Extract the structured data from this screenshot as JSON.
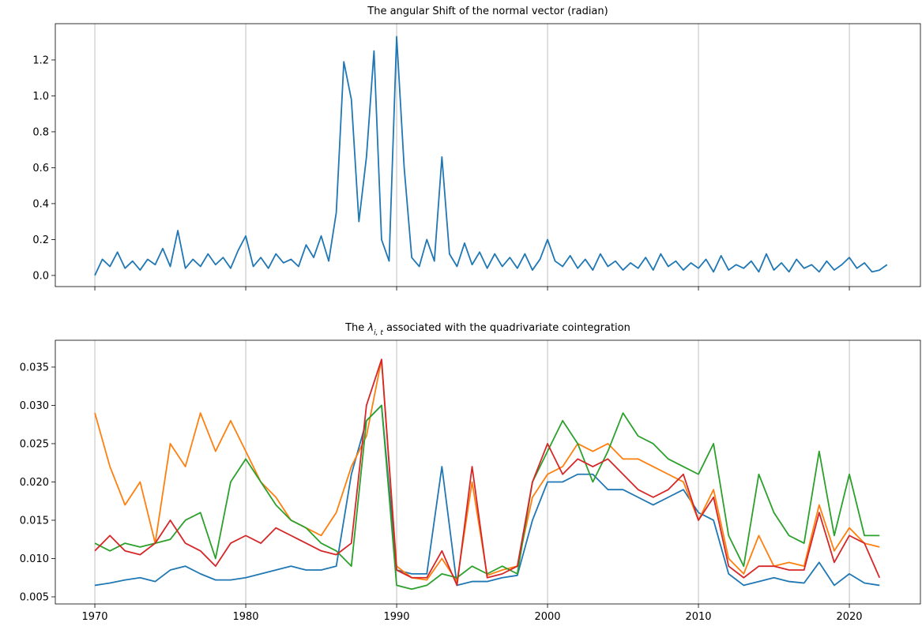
{
  "chart_data": [
    {
      "type": "line",
      "title": "The angular Shift of the normal vector (radian)",
      "grid": "x",
      "show_xtick_labels": false,
      "xlim": [
        1967.38,
        2024.71
      ],
      "xticks": [
        1970,
        1980,
        1990,
        2000,
        2010,
        2020
      ],
      "ylim": [
        -0.062,
        1.402
      ],
      "yticks": [
        {
          "value": 0,
          "label": "0.0"
        },
        0.2,
        0.4,
        0.6,
        0.8,
        {
          "value": 1,
          "label": "1.0"
        },
        1.2
      ],
      "x": [
        1970,
        1970.5,
        1971,
        1971.5,
        1972,
        1972.5,
        1973,
        1973.5,
        1974,
        1974.5,
        1975,
        1975.5,
        1976,
        1976.5,
        1977,
        1977.5,
        1978,
        1978.5,
        1979,
        1979.5,
        1980,
        1980.5,
        1981,
        1981.5,
        1982,
        1982.5,
        1983,
        1983.5,
        1984,
        1984.5,
        1985,
        1985.5,
        1986,
        1986.5,
        1987,
        1987.5,
        1988,
        1988.5,
        1989,
        1989.5,
        1990,
        1990.5,
        1991,
        1991.5,
        1992,
        1992.5,
        1993,
        1993.5,
        1994,
        1994.5,
        1995,
        1995.5,
        1996,
        1996.5,
        1997,
        1997.5,
        1998,
        1998.5,
        1999,
        1999.5,
        2000,
        2000.5,
        2001,
        2001.5,
        2002,
        2002.5,
        2003,
        2003.5,
        2004,
        2004.5,
        2005,
        2005.5,
        2006,
        2006.5,
        2007,
        2007.5,
        2008,
        2008.5,
        2009,
        2009.5,
        2010,
        2010.5,
        2011,
        2011.5,
        2012,
        2012.5,
        2013,
        2013.5,
        2014,
        2014.5,
        2015,
        2015.5,
        2016,
        2016.5,
        2017,
        2017.5,
        2018,
        2018.5,
        2019,
        2019.5,
        2020,
        2020.5,
        2021,
        2021.5,
        2022,
        2022.5
      ],
      "series": [
        {
          "color": "#1f77b4",
          "values": [
            0.0,
            0.09,
            0.05,
            0.13,
            0.04,
            0.08,
            0.03,
            0.09,
            0.06,
            0.15,
            0.05,
            0.25,
            0.04,
            0.09,
            0.05,
            0.12,
            0.06,
            0.1,
            0.04,
            0.14,
            0.22,
            0.05,
            0.1,
            0.04,
            0.12,
            0.07,
            0.09,
            0.05,
            0.17,
            0.1,
            0.22,
            0.08,
            0.35,
            1.19,
            0.98,
            0.3,
            0.66,
            1.25,
            0.2,
            0.08,
            1.33,
            0.6,
            0.1,
            0.05,
            0.2,
            0.08,
            0.66,
            0.12,
            0.05,
            0.18,
            0.06,
            0.13,
            0.04,
            0.12,
            0.05,
            0.1,
            0.04,
            0.12,
            0.03,
            0.09,
            0.2,
            0.08,
            0.05,
            0.11,
            0.04,
            0.09,
            0.03,
            0.12,
            0.05,
            0.08,
            0.03,
            0.07,
            0.04,
            0.1,
            0.03,
            0.12,
            0.05,
            0.08,
            0.03,
            0.07,
            0.04,
            0.09,
            0.02,
            0.11,
            0.03,
            0.06,
            0.04,
            0.08,
            0.02,
            0.12,
            0.03,
            0.07,
            0.02,
            0.09,
            0.04,
            0.06,
            0.02,
            0.08,
            0.03,
            0.06,
            0.1,
            0.04,
            0.07,
            0.02,
            0.03,
            0.06
          ]
        }
      ]
    },
    {
      "type": "line",
      "title": [
        "The ",
        "λ",
        "i, t",
        " associated with the quadrivariate cointegration"
      ],
      "grid": "x",
      "show_xtick_labels": true,
      "xlim": [
        1967.38,
        2024.71
      ],
      "xticks": [
        1970,
        1980,
        1990,
        2000,
        2010,
        2020
      ],
      "ylim": [
        0.00407,
        0.0385
      ],
      "yticks": [
        0.005,
        {
          "value": 0.01,
          "label": "0.010"
        },
        0.015,
        {
          "value": 0.02,
          "label": "0.020"
        },
        0.025,
        {
          "value": 0.03,
          "label": "0.030"
        },
        0.035
      ],
      "x": [
        1970,
        1971,
        1972,
        1973,
        1974,
        1975,
        1976,
        1977,
        1978,
        1979,
        1980,
        1981,
        1982,
        1983,
        1984,
        1985,
        1986,
        1987,
        1988,
        1989,
        1990,
        1991,
        1992,
        1993,
        1994,
        1995,
        1996,
        1997,
        1998,
        1999,
        2000,
        2001,
        2002,
        2003,
        2004,
        2005,
        2006,
        2007,
        2008,
        2009,
        2010,
        2011,
        2012,
        2013,
        2014,
        2015,
        2016,
        2017,
        2018,
        2019,
        2020,
        2021,
        2022
      ],
      "series": [
        {
          "color": "#1f77b4",
          "values": [
            0.0065,
            0.0068,
            0.0072,
            0.0075,
            0.007,
            0.0085,
            0.009,
            0.008,
            0.0072,
            0.0072,
            0.0075,
            0.008,
            0.0085,
            0.009,
            0.0085,
            0.0085,
            0.009,
            0.021,
            0.028,
            0.03,
            0.0085,
            0.008,
            0.008,
            0.022,
            0.0065,
            0.007,
            0.007,
            0.0075,
            0.0078,
            0.015,
            0.02,
            0.02,
            0.021,
            0.021,
            0.019,
            0.019,
            0.018,
            0.017,
            0.018,
            0.019,
            0.016,
            0.015,
            0.008,
            0.0065,
            0.007,
            0.0075,
            0.007,
            0.0068,
            0.0095,
            0.0065,
            0.008,
            0.0068,
            0.0065
          ]
        },
        {
          "color": "#ff7f0e",
          "values": [
            0.029,
            0.022,
            0.017,
            0.02,
            0.012,
            0.025,
            0.022,
            0.029,
            0.024,
            0.028,
            0.024,
            0.02,
            0.018,
            0.015,
            0.014,
            0.013,
            0.016,
            0.022,
            0.026,
            0.036,
            0.009,
            0.0075,
            0.0072,
            0.01,
            0.007,
            0.02,
            0.0078,
            0.0085,
            0.009,
            0.018,
            0.021,
            0.022,
            0.025,
            0.024,
            0.025,
            0.023,
            0.023,
            0.022,
            0.021,
            0.02,
            0.015,
            0.019,
            0.01,
            0.008,
            0.013,
            0.009,
            0.0095,
            0.009,
            0.017,
            0.011,
            0.014,
            0.012,
            0.0115
          ]
        },
        {
          "color": "#2ca02c",
          "values": [
            0.012,
            0.011,
            0.012,
            0.0115,
            0.012,
            0.0125,
            0.015,
            0.016,
            0.01,
            0.02,
            0.023,
            0.02,
            0.017,
            0.015,
            0.014,
            0.012,
            0.011,
            0.009,
            0.028,
            0.03,
            0.0065,
            0.006,
            0.0065,
            0.008,
            0.0075,
            0.009,
            0.008,
            0.009,
            0.008,
            0.02,
            0.024,
            0.028,
            0.025,
            0.02,
            0.024,
            0.029,
            0.026,
            0.025,
            0.023,
            0.022,
            0.021,
            0.025,
            0.013,
            0.009,
            0.021,
            0.016,
            0.013,
            0.012,
            0.024,
            0.013,
            0.021,
            0.013,
            0.013
          ]
        },
        {
          "color": "#d62728",
          "values": [
            0.011,
            0.013,
            0.011,
            0.0105,
            0.012,
            0.015,
            0.012,
            0.011,
            0.009,
            0.012,
            0.013,
            0.012,
            0.014,
            0.013,
            0.012,
            0.011,
            0.0105,
            0.012,
            0.03,
            0.036,
            0.0085,
            0.0075,
            0.0075,
            0.011,
            0.0065,
            0.022,
            0.0075,
            0.008,
            0.009,
            0.02,
            0.025,
            0.021,
            0.023,
            0.022,
            0.023,
            0.021,
            0.019,
            0.018,
            0.019,
            0.021,
            0.015,
            0.018,
            0.009,
            0.0075,
            0.009,
            0.009,
            0.0085,
            0.0085,
            0.016,
            0.0095,
            0.013,
            0.012,
            0.0075
          ]
        }
      ]
    }
  ]
}
